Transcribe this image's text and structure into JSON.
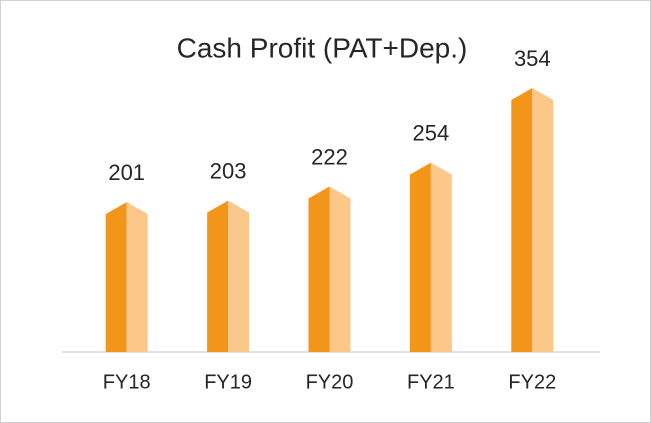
{
  "chart_data": {
    "type": "bar",
    "title": "Cash Profit (PAT+Dep.)",
    "categories": [
      "FY18",
      "FY19",
      "FY20",
      "FY21",
      "FY22"
    ],
    "values": [
      201,
      203,
      222,
      254,
      354
    ],
    "colors": [
      "#F39519",
      "#FBC88A"
    ]
  }
}
